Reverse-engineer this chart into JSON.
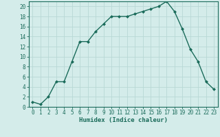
{
  "xlabel": "Humidex (Indice chaleur)",
  "ylabel": "",
  "x_values": [
    0,
    1,
    2,
    3,
    4,
    5,
    6,
    7,
    8,
    9,
    10,
    11,
    12,
    13,
    14,
    15,
    16,
    17,
    18,
    19,
    20,
    21,
    22,
    23
  ],
  "y_values": [
    1,
    0.5,
    2,
    5,
    5,
    9,
    13,
    13,
    15,
    16.5,
    18,
    18,
    18,
    18.5,
    19,
    19.5,
    20,
    21,
    19,
    15.5,
    11.5,
    9,
    5,
    3.5
  ],
  "line_color": "#1a6b5a",
  "bg_color": "#d4ecea",
  "grid_color": "#b8d8d5",
  "tick_color": "#1a6b5a",
  "ylim": [
    0,
    21
  ],
  "xlim": [
    -0.5,
    23.5
  ],
  "yticks": [
    0,
    2,
    4,
    6,
    8,
    10,
    12,
    14,
    16,
    18,
    20
  ],
  "xticks": [
    0,
    1,
    2,
    3,
    4,
    5,
    6,
    7,
    8,
    9,
    10,
    11,
    12,
    13,
    14,
    15,
    16,
    17,
    18,
    19,
    20,
    21,
    22,
    23
  ],
  "tick_fontsize": 5.5,
  "xlabel_fontsize": 6.5
}
